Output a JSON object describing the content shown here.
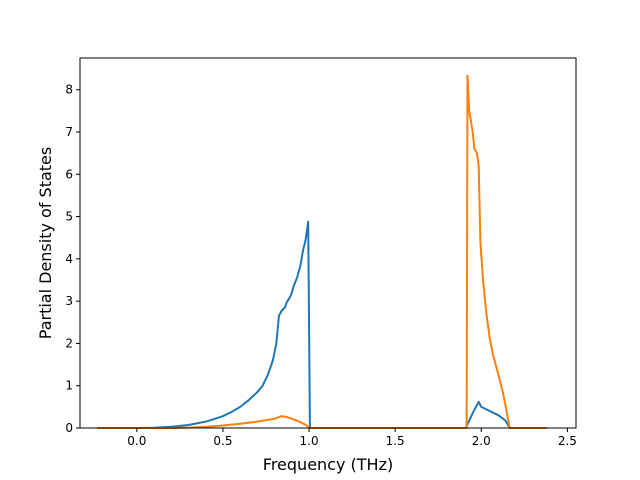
{
  "chart_data": {
    "type": "line",
    "title": "",
    "xlabel": "Frequency (THz)",
    "ylabel": "Partial Density of States",
    "xlim": [
      -0.33,
      2.55
    ],
    "ylim": [
      0,
      8.75
    ],
    "x_ticks": [
      0.0,
      0.5,
      1.0,
      1.5,
      2.0,
      2.5
    ],
    "x_tick_labels": [
      "0.0",
      "0.5",
      "1.0",
      "1.5",
      "2.0",
      "2.5"
    ],
    "y_ticks": [
      0,
      1,
      2,
      3,
      4,
      5,
      6,
      7,
      8
    ],
    "y_tick_labels": [
      "0",
      "1",
      "2",
      "3",
      "4",
      "5",
      "6",
      "7",
      "8"
    ],
    "grid": false,
    "legend": "none",
    "series": [
      {
        "color": "#1f77b4",
        "points": [
          [
            -0.23,
            0
          ],
          [
            0.0,
            0
          ],
          [
            0.1,
            0.005
          ],
          [
            0.2,
            0.03
          ],
          [
            0.3,
            0.07
          ],
          [
            0.4,
            0.15
          ],
          [
            0.5,
            0.28
          ],
          [
            0.55,
            0.38
          ],
          [
            0.6,
            0.5
          ],
          [
            0.65,
            0.66
          ],
          [
            0.7,
            0.85
          ],
          [
            0.73,
            1.0
          ],
          [
            0.76,
            1.25
          ],
          [
            0.79,
            1.6
          ],
          [
            0.81,
            2.0
          ],
          [
            0.825,
            2.65
          ],
          [
            0.84,
            2.77
          ],
          [
            0.86,
            2.85
          ],
          [
            0.87,
            2.97
          ],
          [
            0.89,
            3.1
          ],
          [
            0.9,
            3.2
          ],
          [
            0.91,
            3.35
          ],
          [
            0.93,
            3.55
          ],
          [
            0.95,
            3.85
          ],
          [
            0.965,
            4.2
          ],
          [
            0.98,
            4.45
          ],
          [
            0.995,
            4.88
          ],
          [
            1.005,
            0.0
          ],
          [
            1.05,
            0
          ],
          [
            1.5,
            0
          ],
          [
            1.9,
            0
          ],
          [
            1.91,
            0
          ],
          [
            1.95,
            0.35
          ],
          [
            1.985,
            0.62
          ],
          [
            2.0,
            0.5
          ],
          [
            2.05,
            0.4
          ],
          [
            2.1,
            0.3
          ],
          [
            2.14,
            0.18
          ],
          [
            2.165,
            0.0
          ],
          [
            2.38,
            0
          ]
        ]
      },
      {
        "color": "#ff7f0e",
        "points": [
          [
            -0.23,
            0
          ],
          [
            0.2,
            0
          ],
          [
            0.3,
            0.01
          ],
          [
            0.4,
            0.03
          ],
          [
            0.5,
            0.06
          ],
          [
            0.6,
            0.1
          ],
          [
            0.7,
            0.15
          ],
          [
            0.8,
            0.22
          ],
          [
            0.84,
            0.28
          ],
          [
            0.87,
            0.26
          ],
          [
            0.9,
            0.22
          ],
          [
            0.95,
            0.14
          ],
          [
            0.99,
            0.05
          ],
          [
            1.0,
            0.0
          ],
          [
            1.5,
            0
          ],
          [
            1.9,
            0
          ],
          [
            1.915,
            0
          ],
          [
            1.92,
            8.33
          ],
          [
            1.93,
            7.5
          ],
          [
            1.95,
            7.0
          ],
          [
            1.96,
            6.6
          ],
          [
            1.975,
            6.5
          ],
          [
            1.985,
            6.2
          ],
          [
            1.995,
            4.4
          ],
          [
            2.01,
            3.5
          ],
          [
            2.03,
            2.7
          ],
          [
            2.05,
            2.1
          ],
          [
            2.07,
            1.7
          ],
          [
            2.1,
            1.25
          ],
          [
            2.125,
            0.85
          ],
          [
            2.14,
            0.55
          ],
          [
            2.165,
            0.0
          ],
          [
            2.38,
            0
          ]
        ]
      }
    ]
  }
}
